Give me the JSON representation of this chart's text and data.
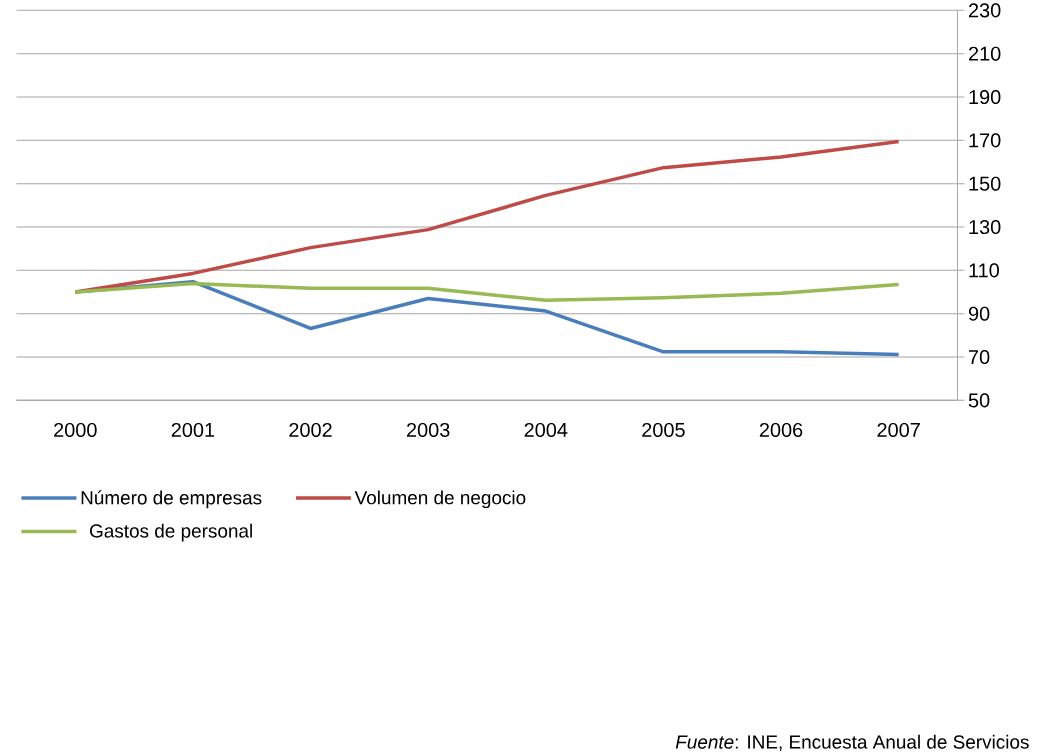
{
  "chart_data": {
    "type": "line",
    "categories": [
      "2000",
      "2001",
      "2002",
      "2003",
      "2004",
      "2005",
      "2006",
      "2007"
    ],
    "series": [
      {
        "name": "Número de empresas",
        "color": "#4a7ebb",
        "values": [
          100,
          104.8,
          83.2,
          97,
          91.2,
          72.4,
          72.4,
          71.2
        ]
      },
      {
        "name": "Volumen de negocio",
        "color": "#be4b48",
        "values": [
          100,
          108.6,
          120.5,
          128.8,
          144.6,
          157.4,
          162.3,
          169.5
        ]
      },
      {
        "name": "Gastos de personal",
        "color": "#98b954",
        "values": [
          100,
          103.9,
          101.7,
          101.7,
          96.2,
          97.4,
          99.4,
          103.5
        ]
      }
    ],
    "ylim": [
      50,
      230
    ],
    "yticks": [
      50,
      70,
      90,
      110,
      130,
      150,
      170,
      190,
      210,
      230
    ],
    "grid": "y",
    "legend": "bottom",
    "marker": "none",
    "line_style": "solid",
    "annotations": [
      "*Fuente*: INE, Encuesta Anual de Servicios"
    ]
  }
}
